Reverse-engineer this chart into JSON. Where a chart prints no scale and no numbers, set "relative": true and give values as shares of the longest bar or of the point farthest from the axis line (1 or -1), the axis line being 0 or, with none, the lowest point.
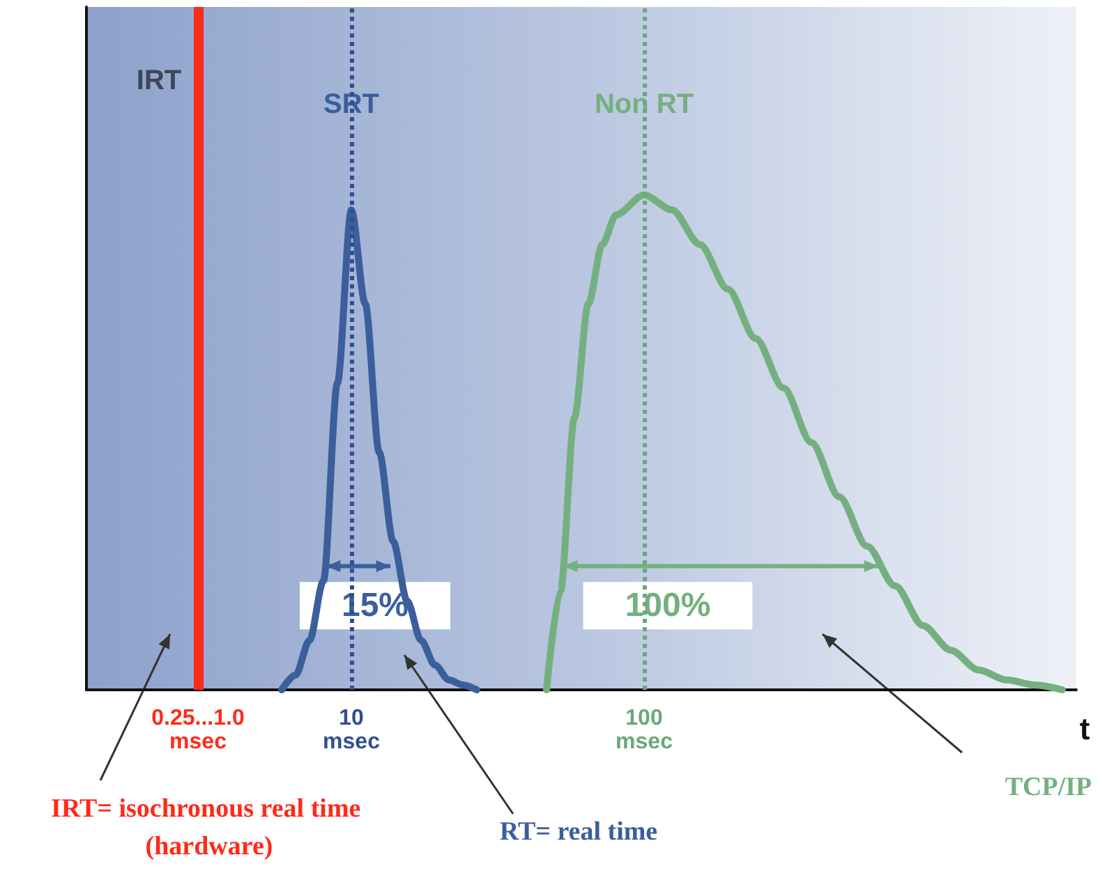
{
  "chart_data": {
    "type": "line",
    "relative": true,
    "xlabel": "t",
    "categories": [
      null,
      null,
      null,
      null,
      null,
      null,
      null,
      null,
      "0.25...1.0 msec",
      null,
      null,
      null,
      null,
      null,
      null,
      null,
      null,
      null,
      null,
      "10 msec",
      null,
      null,
      null,
      null,
      null,
      null,
      null,
      null,
      null,
      null,
      null,
      null,
      null,
      null,
      null,
      null,
      null,
      null,
      null,
      null,
      "100 msec",
      null,
      null,
      null,
      null,
      null,
      null,
      null,
      null,
      null,
      null,
      null,
      null,
      null,
      null,
      null,
      null,
      null,
      null,
      null,
      null,
      null,
      null,
      null,
      null,
      null,
      null,
      null,
      null,
      null,
      null,
      null
    ],
    "series": [
      {
        "name": "SRT",
        "color": "#3b5e9c",
        "values": [
          null,
          null,
          null,
          null,
          null,
          null,
          null,
          null,
          null,
          null,
          null,
          null,
          null,
          null,
          0,
          0.03,
          0.1,
          0.22,
          0.62,
          0.97,
          0.78,
          0.48,
          0.3,
          0.18,
          0.1,
          0.05,
          0.02,
          0.01,
          0,
          null,
          null,
          null,
          null,
          null,
          null,
          null,
          null,
          null,
          null,
          null,
          null,
          null,
          null,
          null,
          null,
          null,
          null,
          null,
          null,
          null,
          null,
          null,
          null,
          null,
          null,
          null,
          null,
          null,
          null,
          null,
          null,
          null,
          null,
          null,
          null,
          null,
          null,
          null,
          null,
          null,
          null,
          null
        ]
      },
      {
        "name": "Non RT",
        "color": "#74b07f",
        "values": [
          null,
          null,
          null,
          null,
          null,
          null,
          null,
          null,
          null,
          null,
          null,
          null,
          null,
          null,
          null,
          null,
          null,
          null,
          null,
          null,
          null,
          null,
          null,
          null,
          null,
          null,
          null,
          null,
          null,
          null,
          null,
          null,
          null,
          0,
          0.2,
          0.55,
          0.78,
          0.9,
          0.96,
          null,
          1,
          null,
          0.97,
          null,
          0.9,
          null,
          0.81,
          null,
          0.71,
          null,
          0.61,
          null,
          0.5,
          null,
          0.39,
          null,
          0.29,
          null,
          0.21,
          null,
          0.13,
          null,
          0.08,
          null,
          0.04,
          null,
          0.02,
          null,
          0.01,
          null,
          0,
          null
        ]
      }
    ],
    "ref_lines": [
      {
        "axis": "x",
        "value": "0.25...1.0 msec",
        "label": "IRT",
        "color": "#ff2a1a",
        "line_style": "solid"
      },
      {
        "axis": "x",
        "value": "10 msec",
        "color": "#2f4f8f",
        "line_style": "dotted"
      },
      {
        "axis": "x",
        "value": "100 msec",
        "color": "#6aa87a",
        "line_style": "dotted"
      }
    ],
    "annotations": [
      {
        "text": "15%",
        "x": "10 msec",
        "y": 0.17
      },
      {
        "text": "100%",
        "x": "100 msec",
        "y": 0.17
      },
      "IRT= isochronous real time (hardware)",
      "RT= real time",
      "TCP/IP"
    ]
  }
}
